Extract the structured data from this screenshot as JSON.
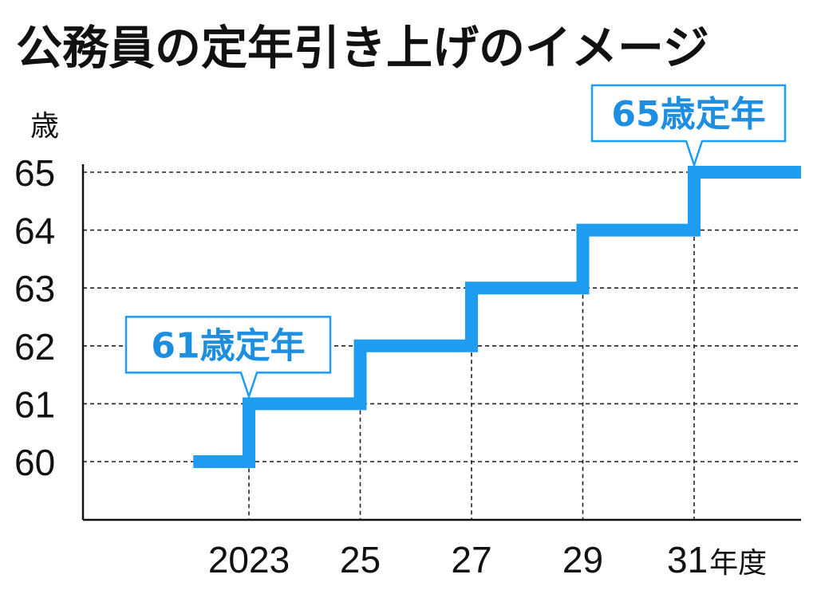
{
  "chart_data": {
    "type": "line",
    "title": "公務員の定年引き上げのイメージ",
    "ylabel": "歳",
    "xlabel": "年度",
    "ylim": [
      59,
      65
    ],
    "xlim": [
      2021,
      2032
    ],
    "y_ticks": [
      "60",
      "61",
      "62",
      "63",
      "64",
      "65"
    ],
    "x_ticks": [
      {
        "value": 2023,
        "label": "2023"
      },
      {
        "value": 2025,
        "label": "25"
      },
      {
        "value": 2027,
        "label": "27"
      },
      {
        "value": 2029,
        "label": "29"
      },
      {
        "value": 2031,
        "label": "31"
      }
    ],
    "grid": "dashed",
    "series": [
      {
        "steps": [
          {
            "x_start": 2022,
            "x_end": 2023,
            "y": 60
          },
          {
            "x_start": 2023,
            "x_end": 2025,
            "y": 61
          },
          {
            "x_start": 2025,
            "x_end": 2027,
            "y": 62
          },
          {
            "x_start": 2027,
            "x_end": 2029,
            "y": 63
          },
          {
            "x_start": 2029,
            "x_end": 2031,
            "y": 64
          },
          {
            "x_start": 2031,
            "x_end": 2033,
            "y": 65
          }
        ]
      }
    ],
    "annotations": [
      {
        "text": "61歳定年",
        "x": 2023,
        "y": 61
      },
      {
        "text": "65歳定年",
        "x": 2031,
        "y": 65
      }
    ],
    "colors": {
      "line": "#1e9cf0",
      "callout_border": "#1e9cf0",
      "callout_text": "#1e8fe0",
      "axis": "#111111"
    }
  }
}
